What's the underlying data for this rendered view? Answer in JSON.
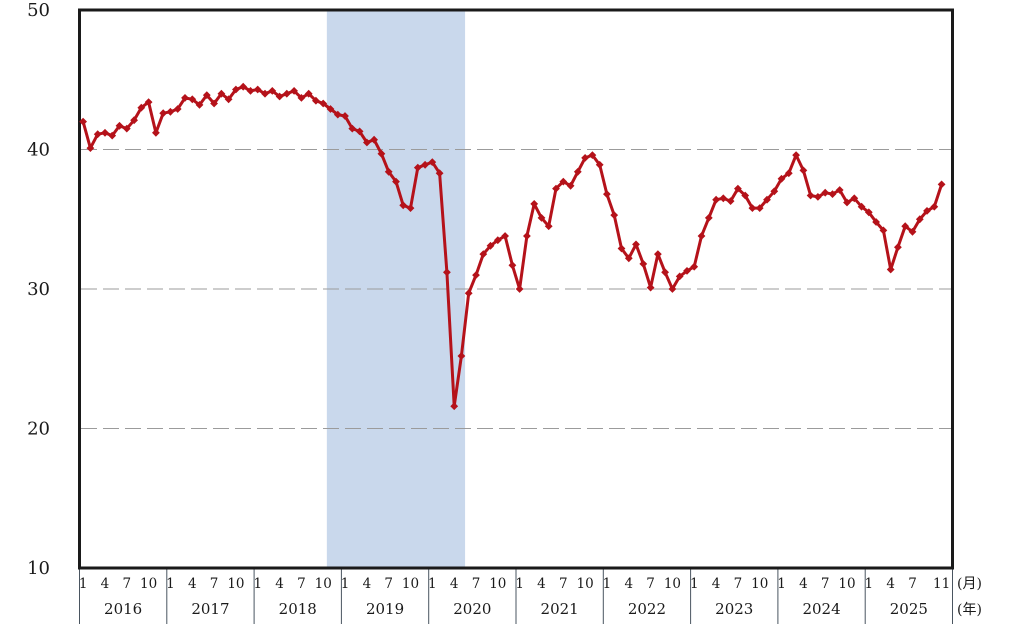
{
  "chart_data": {
    "type": "line",
    "title": "",
    "legend": "none",
    "grid": "horizontal dashed gridlines at 20, 30, 40",
    "y_axis": {
      "min": 10,
      "max": 50,
      "ticks": [
        10,
        20,
        30,
        40,
        50
      ]
    },
    "x_axis": {
      "years": [
        2016,
        2017,
        2018,
        2019,
        2020,
        2021,
        2022,
        2023,
        2024,
        2025
      ],
      "month_tick_labels_default": [
        "1",
        "4",
        "7",
        "10"
      ],
      "month_tick_labels_2025": [
        "1",
        "4",
        "7",
        "11"
      ],
      "month_unit_label": "(月)",
      "year_unit_label": "(年)"
    },
    "recession_band": {
      "from_month": "2018-11",
      "to_month": "2020-05",
      "color": "#c9d8ec"
    },
    "series": [
      {
        "name": "monthly-index",
        "color": "#b5121a",
        "marker": "diamond",
        "start": "2016-01",
        "end": "2025-11",
        "values_by_year": {
          "2016": [
            42.0,
            40.1,
            41.1,
            41.2,
            41.0,
            41.7,
            41.5,
            42.1,
            43.0,
            43.4,
            41.2,
            42.6
          ],
          "2017": [
            42.7,
            42.9,
            43.7,
            43.6,
            43.2,
            43.9,
            43.3,
            44.0,
            43.6,
            44.3,
            44.5,
            44.2
          ],
          "2018": [
            44.3,
            44.0,
            44.2,
            43.8,
            44.0,
            44.2,
            43.7,
            44.0,
            43.5,
            43.3,
            42.9,
            42.5
          ],
          "2019": [
            42.4,
            41.5,
            41.3,
            40.5,
            40.7,
            39.7,
            38.4,
            37.7,
            36.0,
            35.8,
            38.7,
            38.9
          ],
          "2020": [
            39.1,
            38.3,
            31.2,
            21.6,
            25.2,
            29.7,
            31.0,
            32.5,
            33.1,
            33.5,
            33.8,
            31.7
          ],
          "2021": [
            30.0,
            33.8,
            36.1,
            35.1,
            34.5,
            37.2,
            37.7,
            37.4,
            38.4,
            39.4,
            39.6,
            38.9
          ],
          "2022": [
            36.8,
            35.3,
            32.9,
            32.2,
            33.2,
            31.8,
            30.1,
            32.5,
            31.2,
            30.0,
            30.9,
            31.3
          ],
          "2023": [
            31.6,
            33.8,
            35.1,
            36.4,
            36.5,
            36.3,
            37.2,
            36.7,
            35.8,
            35.8,
            36.4,
            37.0
          ],
          "2024": [
            37.9,
            38.3,
            39.6,
            38.5,
            36.7,
            36.6,
            36.9,
            36.8,
            37.1,
            36.2,
            36.5,
            35.9
          ],
          "2025": [
            35.5,
            34.8,
            34.2,
            31.4,
            33.0,
            34.5,
            34.1,
            35.0,
            35.6,
            35.9,
            37.5
          ]
        }
      }
    ],
    "style": {
      "frame_color": "#1a1a1a",
      "gridline_color": "#9b9b9b",
      "separator_color": "#4a5560",
      "text_color": "#1a1a1a"
    }
  }
}
